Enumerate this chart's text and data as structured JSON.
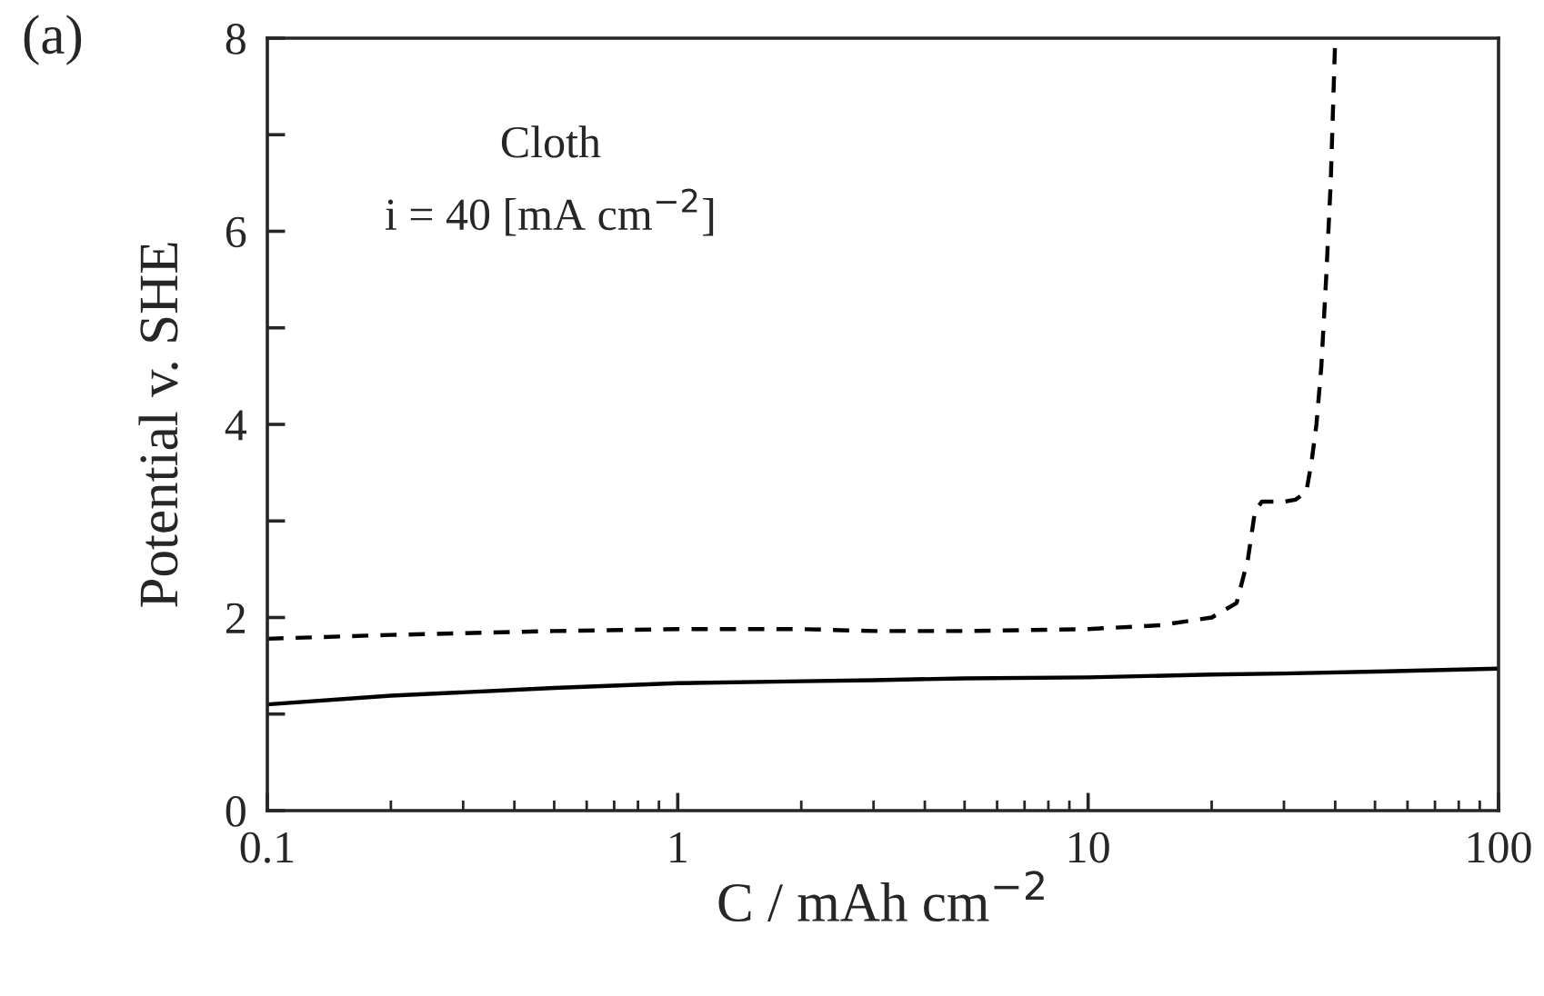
{
  "chart_data": {
    "type": "line",
    "title": "(a)",
    "xlabel": "C / mAh cm$^{−2}$",
    "ylabel": "Potential v. SHE",
    "annotations": [
      "Cloth",
      "i = 40 [mA cm$^{−2}$]"
    ],
    "log": "x",
    "xlim": [
      0.1,
      100
    ],
    "xticks": [
      0.1,
      1,
      10,
      100
    ],
    "ylim": [
      0,
      8
    ],
    "yticks": [
      0,
      {
        "value": 1,
        "label": null
      },
      2,
      {
        "value": 3,
        "label": null
      },
      4,
      {
        "value": 5,
        "label": null
      },
      6,
      {
        "value": 7,
        "label": null
      },
      8
    ],
    "grid": false,
    "legend": false,
    "series": [
      {
        "color": "#000000",
        "line_style": "dashed",
        "x": [
          0.1,
          0.2,
          0.5,
          1,
          2,
          3,
          5,
          10,
          15,
          20,
          23,
          24.5,
          25.5,
          26.5,
          28,
          30,
          32,
          34,
          35,
          36,
          37,
          38,
          39,
          40
        ],
        "values": [
          1.78,
          1.82,
          1.86,
          1.88,
          1.88,
          1.86,
          1.86,
          1.88,
          1.92,
          2.0,
          2.15,
          2.6,
          3.1,
          3.2,
          3.2,
          3.2,
          3.22,
          3.3,
          3.6,
          4.0,
          4.6,
          5.5,
          6.5,
          8.0
        ]
      },
      {
        "color": "#000000",
        "line_style": "solid",
        "x": [
          0.1,
          0.2,
          0.5,
          1,
          2,
          3,
          5,
          10,
          20,
          30,
          50,
          100
        ],
        "values": [
          1.1,
          1.19,
          1.27,
          1.32,
          1.34,
          1.35,
          1.37,
          1.38,
          1.41,
          1.42,
          1.44,
          1.47
        ]
      }
    ]
  }
}
